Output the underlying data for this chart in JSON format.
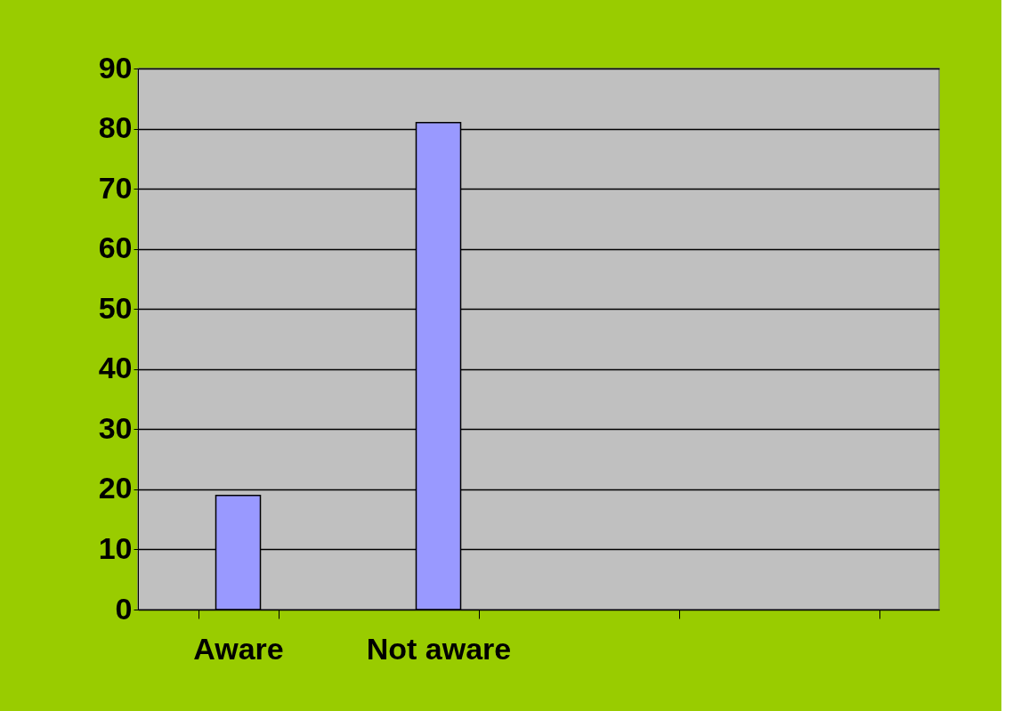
{
  "chart_data": {
    "type": "bar",
    "categories": [
      "Aware",
      "Not aware",
      null,
      null
    ],
    "values": [
      19,
      81,
      null,
      null
    ],
    "color": "#9999ff",
    "ylim": [
      0,
      90
    ],
    "yticks": [
      0,
      10,
      20,
      30,
      40,
      50,
      60,
      70,
      80,
      90
    ],
    "grid": "y"
  }
}
